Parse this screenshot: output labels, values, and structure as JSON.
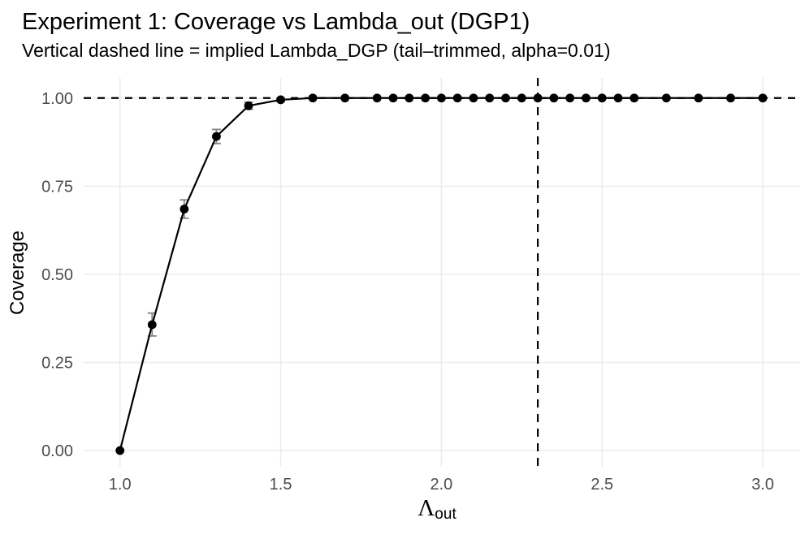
{
  "chart_data": {
    "type": "line",
    "title": "Experiment 1: Coverage vs Lambda_out (DGP1)",
    "subtitle": "Vertical dashed line = implied Lambda_DGP (tail–trimmed, alpha=0.01)",
    "ylabel": "Coverage",
    "xlabel": {
      "symbol": "Λ",
      "subscript": "out"
    },
    "x_ticks": {
      "values": [
        1.0,
        1.5,
        2.0,
        2.5,
        3.0
      ],
      "labels": [
        "1.0",
        "1.5",
        "2.0",
        "2.5",
        "3.0"
      ]
    },
    "y_ticks": {
      "values": [
        0.0,
        0.25,
        0.5,
        0.75,
        1.0
      ],
      "labels": [
        "0.00",
        "0.25",
        "0.50",
        "0.75",
        "1.00"
      ]
    },
    "xlim": [
      0.887,
      3.116
    ],
    "ylim": [
      -0.046,
      1.057
    ],
    "grid": "major-only",
    "legend": "none",
    "reference_lines": {
      "horizontal_y": 1.0,
      "vertical_x": 2.3,
      "style": "dashed",
      "color": "#000000"
    },
    "series": [
      {
        "name": "coverage",
        "color": "#000000",
        "points": [
          {
            "x": 1.0,
            "y": 0.0
          },
          {
            "x": 1.1,
            "y": 0.357,
            "lo": 0.325,
            "hi": 0.39
          },
          {
            "x": 1.2,
            "y": 0.685,
            "lo": 0.659,
            "hi": 0.711
          },
          {
            "x": 1.3,
            "y": 0.891,
            "lo": 0.871,
            "hi": 0.911
          },
          {
            "x": 1.4,
            "y": 0.978,
            "lo": 0.968,
            "hi": 0.988
          },
          {
            "x": 1.5,
            "y": 0.995,
            "lo": 0.99,
            "hi": 0.999
          },
          {
            "x": 1.6,
            "y": 1.0
          },
          {
            "x": 1.7,
            "y": 1.0
          },
          {
            "x": 1.8,
            "y": 1.0
          },
          {
            "x": 1.85,
            "y": 1.0
          },
          {
            "x": 1.9,
            "y": 1.0
          },
          {
            "x": 1.95,
            "y": 1.0
          },
          {
            "x": 2.0,
            "y": 1.0
          },
          {
            "x": 2.05,
            "y": 1.0
          },
          {
            "x": 2.1,
            "y": 1.0
          },
          {
            "x": 2.15,
            "y": 1.0
          },
          {
            "x": 2.2,
            "y": 1.0
          },
          {
            "x": 2.25,
            "y": 1.0
          },
          {
            "x": 2.3,
            "y": 1.0
          },
          {
            "x": 2.35,
            "y": 1.0
          },
          {
            "x": 2.4,
            "y": 1.0
          },
          {
            "x": 2.45,
            "y": 1.0
          },
          {
            "x": 2.5,
            "y": 1.0
          },
          {
            "x": 2.55,
            "y": 1.0
          },
          {
            "x": 2.6,
            "y": 1.0
          },
          {
            "x": 2.7,
            "y": 1.0
          },
          {
            "x": 2.8,
            "y": 1.0
          },
          {
            "x": 2.9,
            "y": 1.0
          },
          {
            "x": 3.0,
            "y": 1.0
          }
        ]
      }
    ],
    "colors": {
      "line": "#000000",
      "point": "#000000",
      "errorbar": "#848484",
      "grid": "#EBEBEB",
      "tick_label": "#4D4D4D",
      "title_text": "#000000"
    }
  }
}
